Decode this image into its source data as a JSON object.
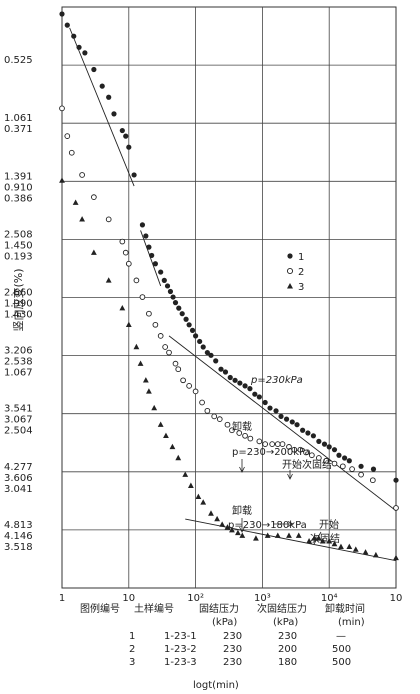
{
  "chart_data": {
    "type": "scatter",
    "xscale": "log",
    "xlabel": "log t (min)",
    "ylabel": "竖向应变(%)",
    "xlim": [
      1,
      100000
    ],
    "x_tick_labels": [
      "1",
      "10",
      "10²",
      "10³",
      "10⁴",
      "10"
    ],
    "y_tick_labels": [
      {
        "s1": "0.525",
        "s2": "",
        "s3": ""
      },
      {
        "s1": "1.061",
        "s2": "0.371",
        "s3": ""
      },
      {
        "s1": "1.391",
        "s2": "0.910",
        "s3": "0.386"
      },
      {
        "s1": "2.508",
        "s2": "1.450",
        "s3": "0.193"
      },
      {
        "s1": "2.660",
        "s2": "1.990",
        "s3": "1.430"
      },
      {
        "s1": "3.206",
        "s2": "2.538",
        "s3": "1.067"
      },
      {
        "s1": "3.541",
        "s2": "3.067",
        "s3": "2.504"
      },
      {
        "s1": "4.277",
        "s2": "3.606",
        "s3": "3.041"
      },
      {
        "s1": "4.813",
        "s2": "4.146",
        "s3": "3.518"
      }
    ],
    "legend": {
      "placement": "middle-right",
      "entries": [
        {
          "label": "1",
          "marker": "filled-circle"
        },
        {
          "label": "2",
          "marker": "open-circle"
        },
        {
          "label": "3",
          "marker": "filled-triangle"
        }
      ]
    },
    "annotations": {
      "line1": "p=230kPa",
      "unload1": "卸载",
      "p2": "p=230→200kPa",
      "secondary2": "开始次固结",
      "unload2": "卸载",
      "p3": "p=230→180kPa",
      "secondary3a": "开始",
      "secondary3b": "次固结"
    },
    "series": [
      {
        "name": "1",
        "marker": "filled-circle",
        "x": [
          1,
          1.2,
          1.5,
          1.8,
          2.2,
          3,
          4,
          5,
          6,
          8,
          9,
          10,
          12,
          16,
          18,
          20,
          22,
          25,
          30,
          34,
          38,
          42,
          46,
          50,
          56,
          63,
          72,
          80,
          90,
          100,
          115,
          130,
          150,
          170,
          200,
          240,
          280,
          330,
          390,
          460,
          550,
          650,
          770,
          900,
          1100,
          1300,
          1600,
          1900,
          2300,
          2800,
          3300,
          4000,
          4800,
          5800,
          7000,
          8500,
          10000,
          12000,
          14000,
          17000,
          20000,
          30000,
          46000,
          100000
        ],
        "y": [
          0,
          0.2,
          0.4,
          0.6,
          0.7,
          1.0,
          1.3,
          1.5,
          1.8,
          2.1,
          2.2,
          2.4,
          2.9,
          3.8,
          4.0,
          4.2,
          4.35,
          4.5,
          4.65,
          4.8,
          4.9,
          5.0,
          5.1,
          5.2,
          5.3,
          5.4,
          5.5,
          5.6,
          5.7,
          5.8,
          5.9,
          6.0,
          6.1,
          6.15,
          6.25,
          6.4,
          6.45,
          6.55,
          6.6,
          6.65,
          6.7,
          6.75,
          6.85,
          6.9,
          7.0,
          7.1,
          7.15,
          7.25,
          7.3,
          7.35,
          7.4,
          7.5,
          7.55,
          7.6,
          7.7,
          7.75,
          7.8,
          7.85,
          7.95,
          8.0,
          8.05,
          8.15,
          8.2,
          8.4
        ]
      },
      {
        "name": "2",
        "marker": "open-circle",
        "x": [
          1,
          1.2,
          1.4,
          2,
          3,
          5,
          8,
          9,
          10,
          13,
          16,
          20,
          25,
          30,
          35,
          40,
          50,
          55,
          65,
          80,
          100,
          125,
          150,
          190,
          230,
          300,
          350,
          450,
          550,
          660,
          900,
          1100,
          1400,
          1700,
          2000,
          2500,
          3000,
          3700,
          4500,
          5500,
          7000,
          9000,
          12000,
          16000,
          22000,
          30000,
          45000,
          100000
        ],
        "y": [
          1.7,
          2.2,
          2.5,
          2.9,
          3.3,
          3.7,
          4.1,
          4.3,
          4.5,
          4.8,
          5.1,
          5.4,
          5.6,
          5.8,
          6.0,
          6.1,
          6.3,
          6.4,
          6.6,
          6.7,
          6.8,
          7.0,
          7.15,
          7.25,
          7.3,
          7.4,
          7.5,
          7.55,
          7.6,
          7.65,
          7.7,
          7.75,
          7.75,
          7.75,
          7.75,
          7.8,
          7.85,
          7.85,
          7.9,
          7.95,
          8.0,
          8.05,
          8.1,
          8.15,
          8.2,
          8.3,
          8.4,
          8.9
        ]
      },
      {
        "name": "3",
        "marker": "filled-triangle",
        "x": [
          1,
          1.6,
          2,
          3,
          5,
          8,
          10,
          13,
          15,
          18,
          20,
          24,
          30,
          36,
          45,
          55,
          70,
          85,
          110,
          130,
          170,
          210,
          250,
          300,
          350,
          430,
          500,
          800,
          1200,
          1700,
          2500,
          3500,
          5000,
          6000,
          7000,
          8000,
          10000,
          12000,
          15000,
          20000,
          25000,
          35000,
          50000,
          100000
        ],
        "y": [
          3.0,
          3.4,
          3.7,
          4.3,
          4.8,
          5.3,
          5.6,
          6.0,
          6.3,
          6.6,
          6.8,
          7.1,
          7.4,
          7.6,
          7.8,
          8.0,
          8.3,
          8.5,
          8.7,
          8.8,
          9.0,
          9.1,
          9.2,
          9.25,
          9.3,
          9.35,
          9.4,
          9.45,
          9.4,
          9.4,
          9.4,
          9.4,
          9.5,
          9.45,
          9.45,
          9.5,
          9.5,
          9.55,
          9.6,
          9.6,
          9.65,
          9.7,
          9.75,
          9.8
        ]
      }
    ]
  },
  "table": {
    "headers": [
      "图例编号",
      "土样编号",
      "固结压力",
      "次固结压力",
      "卸载时间"
    ],
    "units": [
      "(kPa)",
      "(kPa)",
      "(min)"
    ],
    "rows": [
      [
        "1",
        "1-23-1",
        "230",
        "230",
        "—"
      ],
      [
        "2",
        "1-23-2",
        "230",
        "200",
        "500"
      ],
      [
        "3",
        "1-23-3",
        "230",
        "180",
        "500"
      ]
    ],
    "footer": "logt(min)"
  }
}
